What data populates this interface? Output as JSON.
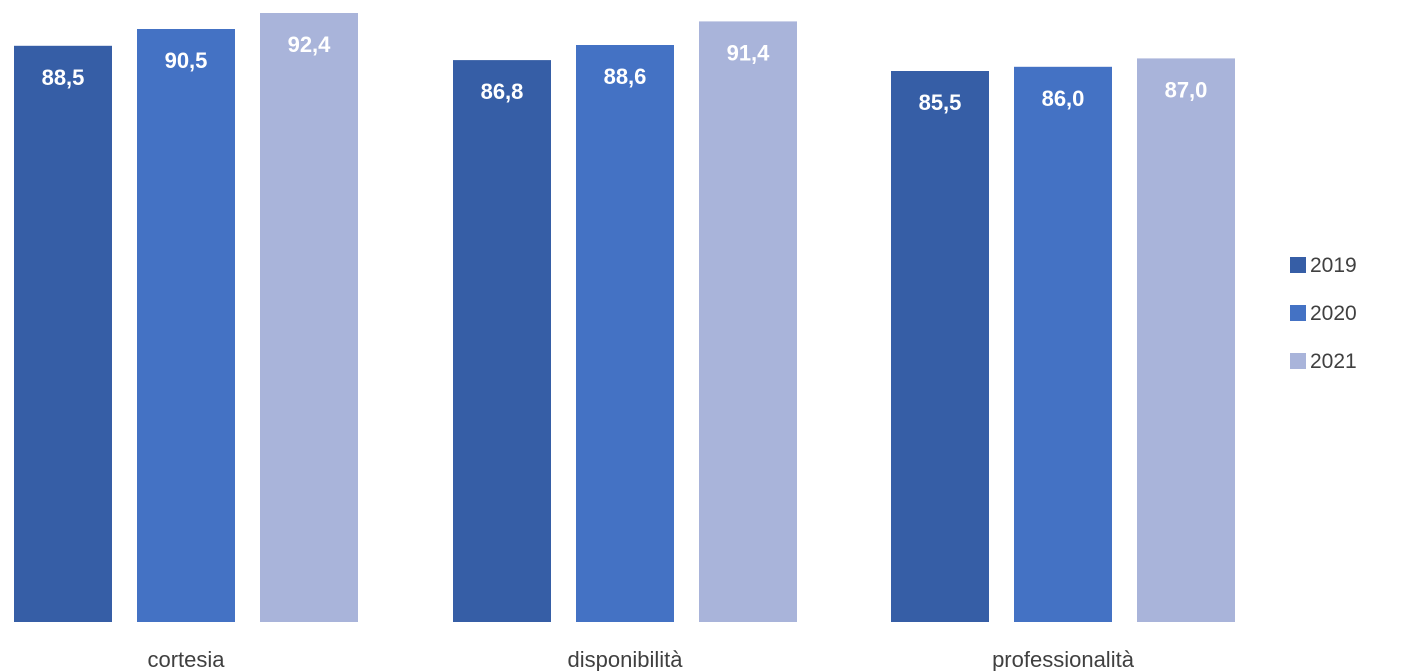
{
  "chart_data": {
    "type": "bar",
    "categories": [
      "cortesia",
      "disponibilità",
      "professionalità"
    ],
    "series": [
      {
        "name": "2019",
        "values": [
          88.5,
          86.8,
          85.5
        ],
        "labels": [
          "88,5",
          "86,8",
          "85,5"
        ],
        "color": "#365EA6"
      },
      {
        "name": "2020",
        "values": [
          90.5,
          88.6,
          86.0
        ],
        "labels": [
          "90,5",
          "88,6",
          "86,0"
        ],
        "color": "#4472C4"
      },
      {
        "name": "2021",
        "values": [
          92.4,
          91.4,
          87.0
        ],
        "labels": [
          "92,4",
          "91,4",
          "87,0"
        ],
        "color": "#A9B4DA"
      }
    ],
    "ylim": [
      20,
      95
    ],
    "grid": false,
    "legend_position": "right",
    "title": "",
    "xlabel": "",
    "ylabel": ""
  }
}
